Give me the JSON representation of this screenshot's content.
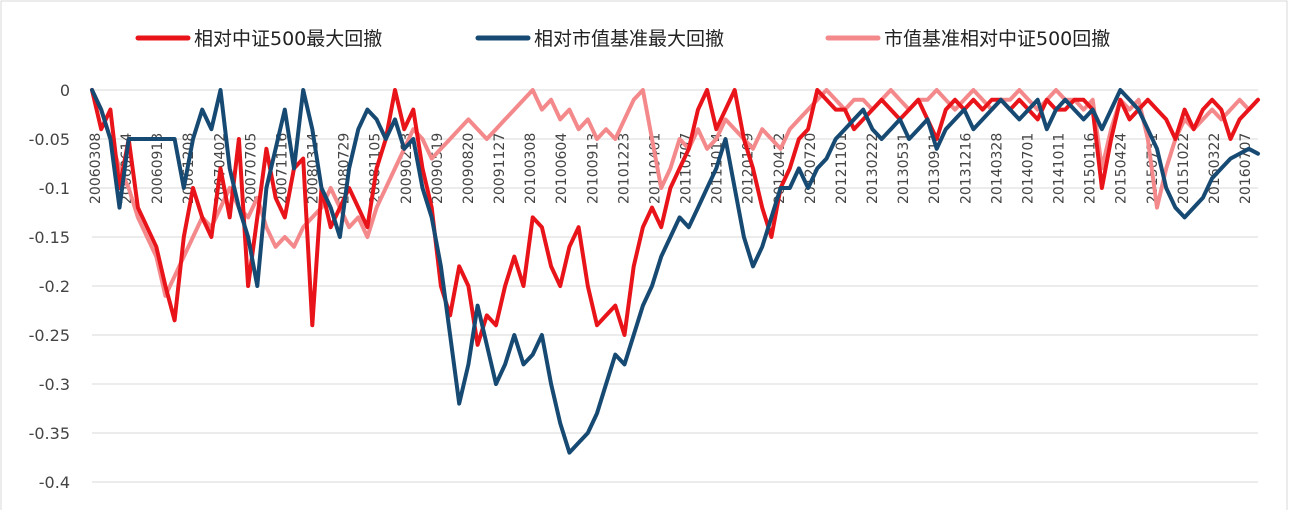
{
  "chart_data": {
    "type": "line",
    "title": "",
    "xlabel": "",
    "ylabel": "",
    "ylim": [
      -0.4,
      0
    ],
    "yticks": [
      0,
      -0.05,
      -0.1,
      -0.15,
      -0.2,
      -0.25,
      -0.3,
      -0.35,
      -0.4
    ],
    "ytick_labels": [
      "0",
      "-0.05",
      "-0.1",
      "-0.15",
      "-0.2",
      "-0.25",
      "-0.3",
      "-0.35",
      "-0.4"
    ],
    "grid": true,
    "legend_position": "top",
    "x_tick_labels": [
      "20060308",
      "20060614",
      "20060913",
      "20061208",
      "20070402",
      "20070705",
      "20071116",
      "20080314",
      "20080729",
      "20081105",
      "20090213",
      "20090519",
      "20090820",
      "20091127",
      "20100308",
      "20100604",
      "20100913",
      "20101223",
      "20110401",
      "20110707",
      "20111014",
      "20120109",
      "20120412",
      "20120720",
      "20121101",
      "20130222",
      "20130531",
      "20130911",
      "20131216",
      "20140328",
      "20140701",
      "20141011",
      "20150116",
      "20150424",
      "20150731",
      "20151022",
      "20160322",
      "20160707"
    ],
    "x_tick_labels_visible": [
      "20060308",
      "20060614",
      "20060913",
      "20061208",
      "20070402",
      "20070705",
      "20071116",
      "20080314",
      "20080729",
      "20081105",
      "20090213",
      "20090519",
      "20090820",
      "20091127",
      "20100308",
      "20100604",
      "20100913",
      "20101223",
      "20110401",
      "20110707",
      "20111014",
      "20120109",
      "20120412",
      "20120720",
      "20121101",
      "20130222",
      "20130531",
      "20130911",
      "20131216",
      "20140328",
      "20140701",
      "20141011",
      "20150116",
      "20150424",
      "20150731",
      "20151022",
      "20160322",
      "20160707"
    ],
    "series": [
      {
        "name": "相对中证500最大回撤",
        "color": "#e8141a",
        "values": [
          0,
          -0.04,
          -0.02,
          -0.1,
          -0.05,
          -0.12,
          -0.14,
          -0.16,
          -0.2,
          -0.235,
          -0.15,
          -0.1,
          -0.13,
          -0.15,
          -0.08,
          -0.13,
          -0.05,
          -0.2,
          -0.13,
          -0.06,
          -0.11,
          -0.13,
          -0.08,
          -0.07,
          -0.24,
          -0.1,
          -0.14,
          -0.12,
          -0.1,
          -0.12,
          -0.14,
          -0.08,
          -0.05,
          0,
          -0.04,
          -0.02,
          -0.08,
          -0.12,
          -0.2,
          -0.23,
          -0.18,
          -0.2,
          -0.26,
          -0.23,
          -0.24,
          -0.2,
          -0.17,
          -0.2,
          -0.13,
          -0.14,
          -0.18,
          -0.2,
          -0.16,
          -0.14,
          -0.2,
          -0.24,
          -0.23,
          -0.22,
          -0.25,
          -0.18,
          -0.14,
          -0.12,
          -0.14,
          -0.1,
          -0.08,
          -0.06,
          -0.02,
          0,
          -0.04,
          -0.02,
          0,
          -0.05,
          -0.08,
          -0.12,
          -0.15,
          -0.1,
          -0.08,
          -0.05,
          -0.04,
          0,
          -0.01,
          -0.02,
          -0.02,
          -0.04,
          -0.03,
          -0.02,
          -0.01,
          -0.02,
          -0.03,
          -0.02,
          -0.01,
          -0.03,
          -0.05,
          -0.02,
          -0.01,
          -0.02,
          -0.01,
          -0.02,
          -0.01,
          -0.01,
          -0.02,
          -0.01,
          -0.02,
          -0.03,
          -0.01,
          -0.02,
          -0.02,
          -0.01,
          -0.01,
          -0.02,
          -0.1,
          -0.05,
          -0.01,
          -0.03,
          -0.02,
          -0.01,
          -0.02,
          -0.03,
          -0.05,
          -0.02,
          -0.04,
          -0.02,
          -0.01,
          -0.02,
          -0.05,
          -0.03,
          -0.02,
          -0.01
        ]
      },
      {
        "name": "相对市值基准最大回撤",
        "color": "#174a73",
        "values": [
          0,
          -0.02,
          -0.05,
          -0.12,
          -0.05,
          -0.05,
          -0.05,
          -0.05,
          -0.05,
          -0.05,
          -0.1,
          -0.05,
          -0.02,
          -0.04,
          0,
          -0.08,
          -0.12,
          -0.15,
          -0.2,
          -0.1,
          -0.06,
          -0.02,
          -0.08,
          0,
          -0.04,
          -0.1,
          -0.12,
          -0.15,
          -0.08,
          -0.04,
          -0.02,
          -0.03,
          -0.05,
          -0.03,
          -0.06,
          -0.05,
          -0.1,
          -0.13,
          -0.18,
          -0.25,
          -0.32,
          -0.28,
          -0.22,
          -0.26,
          -0.3,
          -0.28,
          -0.25,
          -0.28,
          -0.27,
          -0.25,
          -0.3,
          -0.34,
          -0.37,
          -0.36,
          -0.35,
          -0.33,
          -0.3,
          -0.27,
          -0.28,
          -0.25,
          -0.22,
          -0.2,
          -0.17,
          -0.15,
          -0.13,
          -0.14,
          -0.12,
          -0.1,
          -0.08,
          -0.05,
          -0.1,
          -0.15,
          -0.18,
          -0.16,
          -0.13,
          -0.1,
          -0.1,
          -0.08,
          -0.1,
          -0.08,
          -0.07,
          -0.05,
          -0.04,
          -0.03,
          -0.02,
          -0.04,
          -0.05,
          -0.04,
          -0.03,
          -0.05,
          -0.04,
          -0.03,
          -0.06,
          -0.04,
          -0.03,
          -0.02,
          -0.04,
          -0.03,
          -0.02,
          -0.01,
          -0.02,
          -0.03,
          -0.02,
          -0.01,
          -0.04,
          -0.02,
          -0.01,
          -0.02,
          -0.03,
          -0.02,
          -0.04,
          -0.02,
          0,
          -0.01,
          -0.02,
          -0.04,
          -0.06,
          -0.1,
          -0.12,
          -0.13,
          -0.12,
          -0.11,
          -0.09,
          -0.08,
          -0.07,
          -0.065,
          -0.06,
          -0.065
        ]
      },
      {
        "name": "市值基准相对中证500回撤",
        "color": "#f4898c",
        "values": [
          0,
          -0.02,
          -0.05,
          -0.08,
          -0.1,
          -0.13,
          -0.15,
          -0.17,
          -0.21,
          -0.19,
          -0.17,
          -0.15,
          -0.13,
          -0.14,
          -0.12,
          -0.1,
          -0.12,
          -0.13,
          -0.11,
          -0.14,
          -0.16,
          -0.15,
          -0.16,
          -0.14,
          -0.13,
          -0.12,
          -0.1,
          -0.12,
          -0.14,
          -0.13,
          -0.15,
          -0.12,
          -0.1,
          -0.08,
          -0.06,
          -0.04,
          -0.05,
          -0.07,
          -0.06,
          -0.05,
          -0.04,
          -0.03,
          -0.04,
          -0.05,
          -0.04,
          -0.03,
          -0.02,
          -0.01,
          0,
          -0.02,
          -0.01,
          -0.03,
          -0.02,
          -0.04,
          -0.03,
          -0.05,
          -0.04,
          -0.05,
          -0.03,
          -0.01,
          0,
          -0.05,
          -0.1,
          -0.08,
          -0.05,
          -0.06,
          -0.04,
          -0.06,
          -0.05,
          -0.03,
          -0.04,
          -0.05,
          -0.06,
          -0.04,
          -0.05,
          -0.06,
          -0.04,
          -0.03,
          -0.02,
          -0.01,
          0,
          -0.01,
          -0.02,
          -0.01,
          -0.01,
          -0.02,
          -0.01,
          0,
          -0.01,
          -0.02,
          -0.01,
          -0.01,
          0,
          -0.01,
          -0.02,
          -0.01,
          0,
          -0.01,
          -0.02,
          -0.01,
          -0.01,
          0,
          -0.01,
          -0.02,
          -0.01,
          0,
          -0.01,
          -0.01,
          -0.02,
          -0.01,
          -0.08,
          -0.04,
          -0.01,
          -0.02,
          -0.01,
          -0.05,
          -0.12,
          -0.08,
          -0.05,
          -0.03,
          -0.04,
          -0.03,
          -0.02,
          -0.03,
          -0.02,
          -0.01,
          -0.02,
          -0.01
        ]
      }
    ]
  }
}
